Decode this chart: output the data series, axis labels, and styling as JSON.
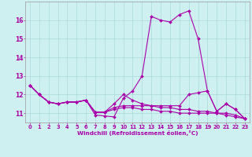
{
  "xlabel": "Windchill (Refroidissement éolien,°C)",
  "xlim": [
    -0.5,
    23.5
  ],
  "ylim": [
    10.5,
    17.0
  ],
  "xticks": [
    0,
    1,
    2,
    3,
    4,
    5,
    6,
    7,
    8,
    9,
    10,
    11,
    12,
    13,
    14,
    15,
    16,
    17,
    18,
    19,
    20,
    21,
    22,
    23
  ],
  "yticks": [
    11,
    12,
    13,
    14,
    15,
    16
  ],
  "bg_color": "#cff0f0",
  "line_color": "#aa00aa",
  "grid_color": "#aadada",
  "series": [
    [
      12.5,
      12.0,
      11.6,
      11.5,
      11.6,
      11.6,
      11.7,
      10.9,
      10.85,
      10.8,
      11.8,
      12.2,
      13.0,
      16.2,
      16.0,
      15.9,
      16.3,
      16.5,
      15.0,
      12.2,
      11.1,
      11.5,
      11.2,
      10.7
    ],
    [
      12.5,
      12.0,
      11.6,
      11.5,
      11.6,
      11.6,
      11.7,
      11.05,
      11.05,
      11.5,
      12.0,
      11.7,
      11.5,
      11.4,
      11.4,
      11.4,
      11.4,
      12.0,
      12.1,
      12.2,
      11.1,
      11.5,
      11.2,
      10.7
    ],
    [
      12.5,
      12.0,
      11.6,
      11.5,
      11.6,
      11.6,
      11.7,
      11.05,
      11.05,
      11.3,
      11.4,
      11.4,
      11.4,
      11.4,
      11.3,
      11.3,
      11.2,
      11.2,
      11.1,
      11.1,
      11.0,
      11.0,
      10.9,
      10.7
    ],
    [
      12.5,
      12.0,
      11.6,
      11.5,
      11.6,
      11.6,
      11.7,
      11.05,
      11.05,
      11.2,
      11.3,
      11.3,
      11.2,
      11.2,
      11.1,
      11.1,
      11.0,
      11.0,
      11.0,
      11.0,
      11.0,
      10.9,
      10.8,
      10.7
    ]
  ]
}
